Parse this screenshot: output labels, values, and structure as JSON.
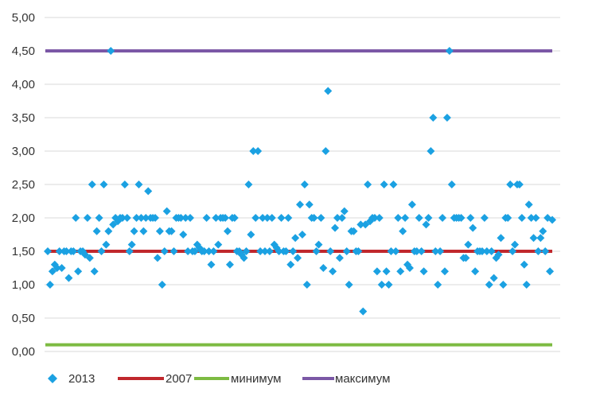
{
  "chart_data": {
    "type": "scatter",
    "title": "",
    "xlabel": "",
    "ylabel": "",
    "ylim": [
      0,
      5
    ],
    "yticks": [
      "0,00",
      "0,50",
      "1,00",
      "1,50",
      "2,00",
      "2,50",
      "3,00",
      "3,50",
      "4,00",
      "4,50",
      "5,00"
    ],
    "ytick_values": [
      0,
      0.5,
      1,
      1.5,
      2,
      2.5,
      3,
      3.5,
      4,
      4.5,
      5
    ],
    "grid": "horizontal",
    "legend_position": "bottom",
    "series": [
      {
        "name": "2013",
        "kind": "scatter",
        "marker": "diamond",
        "color": "#1ba1e2",
        "values": [
          1.5,
          1.0,
          1.2,
          1.3,
          1.25,
          1.5,
          1.25,
          1.5,
          1.5,
          1.1,
          1.5,
          1.5,
          2.0,
          1.2,
          1.5,
          1.5,
          1.45,
          2.0,
          1.4,
          2.5,
          1.2,
          1.8,
          2.0,
          1.5,
          2.5,
          1.6,
          1.8,
          4.5,
          1.9,
          2.0,
          1.95,
          2.0,
          2.0,
          2.5,
          2.0,
          1.5,
          1.6,
          1.8,
          2.0,
          2.5,
          2.0,
          1.8,
          2.0,
          2.4,
          2.0,
          2.0,
          2.0,
          1.4,
          1.8,
          1.0,
          1.5,
          2.1,
          1.8,
          1.8,
          1.5,
          2.0,
          2.0,
          2.0,
          1.75,
          2.0,
          1.5,
          2.0,
          1.5,
          1.5,
          1.6,
          1.55,
          1.5,
          1.5,
          2.0,
          1.5,
          1.3,
          1.5,
          2.0,
          1.6,
          2.0,
          2.0,
          2.0,
          1.8,
          1.3,
          2.0,
          2.0,
          1.5,
          1.5,
          1.45,
          1.4,
          1.5,
          2.5,
          1.75,
          3.0,
          2.0,
          3.0,
          1.5,
          2.0,
          1.5,
          2.0,
          1.5,
          2.0,
          1.6,
          1.55,
          1.5,
          2.0,
          1.5,
          1.5,
          2.0,
          1.3,
          1.5,
          1.7,
          1.4,
          2.2,
          1.75,
          2.5,
          1.0,
          2.2,
          2.0,
          2.0,
          1.5,
          1.6,
          2.0,
          1.25,
          3.0,
          3.9,
          1.5,
          1.2,
          1.85,
          2.0,
          1.4,
          2.0,
          2.1,
          1.5,
          1.0,
          1.8,
          1.8,
          1.5,
          1.5,
          1.9,
          0.6,
          1.9,
          2.5,
          1.95,
          2.0,
          2.0,
          1.2,
          2.0,
          1.0,
          2.5,
          1.2,
          1.0,
          1.5,
          2.5,
          1.5,
          2.0,
          1.2,
          1.8,
          2.0,
          1.3,
          1.25,
          2.2,
          1.5,
          1.5,
          2.0,
          1.5,
          1.2,
          1.9,
          2.0,
          3.0,
          3.5,
          1.5,
          1.0,
          1.5,
          2.0,
          1.2,
          3.5,
          4.5,
          2.5,
          2.0,
          2.0,
          2.0,
          2.0,
          1.4,
          1.4,
          1.6,
          2.0,
          1.85,
          1.2,
          1.5,
          1.5,
          1.5,
          2.0,
          1.5,
          1.0,
          1.5,
          1.1,
          1.4,
          1.45,
          1.7,
          1.0,
          2.0,
          2.0,
          2.5,
          1.5,
          1.6,
          2.5,
          2.5,
          2.0,
          1.3,
          1.0,
          2.2,
          2.0,
          1.7,
          2.0,
          1.5,
          1.7,
          1.8,
          1.5,
          2.0,
          1.2,
          1.97
        ]
      },
      {
        "name": "2007",
        "kind": "line",
        "color": "#c0282d",
        "value": 1.5
      },
      {
        "name": "минимум",
        "kind": "line",
        "color": "#7dbb42",
        "value": 0.1
      },
      {
        "name": "максимум",
        "kind": "line",
        "color": "#7b58a6",
        "value": 4.5
      }
    ]
  }
}
